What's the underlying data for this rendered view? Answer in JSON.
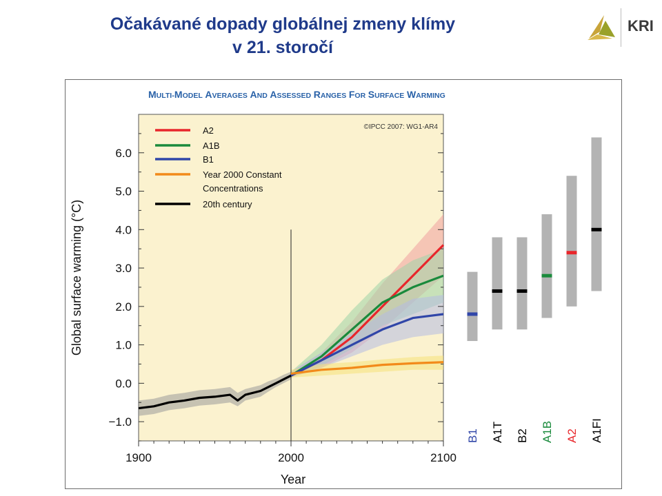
{
  "slide": {
    "title_line1": "Očakávané dopady globálnej zmeny klímy",
    "title_line2": "v 21. storočí",
    "logo_text": "KRI"
  },
  "chart_data": {
    "type": "line",
    "title": "MULTI-MODEL AVERAGES AND ASSESSED RANGES FOR SURFACE WARMING",
    "title_cap_letters": [
      "M",
      "M",
      "A",
      "A",
      "A",
      "R",
      "F",
      "S",
      "W"
    ],
    "credit": "©IPCC 2007: WG1-AR4",
    "xlabel": "Year",
    "ylabel": "Global surface warming (°C)",
    "xlim": [
      1900,
      2100
    ],
    "ylim": [
      -1.5,
      7.0
    ],
    "x_ticks": [
      "1900",
      "2000",
      "2100"
    ],
    "x_tick_values": [
      1900,
      2000,
      2100
    ],
    "y_ticks": [
      "−1.0",
      "0.0",
      "1.0",
      "2.0",
      "3.0",
      "4.0",
      "5.0",
      "6.0"
    ],
    "y_tick_values": [
      -1,
      0,
      1,
      2,
      3,
      4,
      5,
      6
    ],
    "legend_position": "top-left",
    "background_color": "#fbf2cf",
    "series": [
      {
        "name": "A2",
        "color": "#e8262b",
        "band_color": "#f0a0a0",
        "x": [
          2000,
          2020,
          2040,
          2060,
          2080,
          2100
        ],
        "y": [
          0.2,
          0.6,
          1.2,
          2.0,
          2.8,
          3.6
        ],
        "low": [
          0.15,
          0.4,
          0.8,
          1.4,
          2.1,
          2.8
        ],
        "high": [
          0.3,
          0.8,
          1.6,
          2.6,
          3.5,
          4.4
        ]
      },
      {
        "name": "A1B",
        "color": "#1a8a3c",
        "band_color": "#9fd4a8",
        "x": [
          2000,
          2020,
          2040,
          2060,
          2080,
          2100
        ],
        "y": [
          0.2,
          0.7,
          1.4,
          2.1,
          2.5,
          2.8
        ],
        "low": [
          0.15,
          0.45,
          0.9,
          1.5,
          1.8,
          2.1
        ],
        "high": [
          0.3,
          1.0,
          1.9,
          2.7,
          3.2,
          3.5
        ]
      },
      {
        "name": "B1",
        "color": "#3046a8",
        "band_color": "#b4bce4",
        "x": [
          2000,
          2020,
          2040,
          2060,
          2080,
          2100
        ],
        "y": [
          0.2,
          0.6,
          1.0,
          1.4,
          1.7,
          1.8
        ],
        "low": [
          0.15,
          0.4,
          0.7,
          1.0,
          1.2,
          1.3
        ],
        "high": [
          0.3,
          0.8,
          1.3,
          1.8,
          2.2,
          2.3
        ]
      },
      {
        "name": "Year 2000 Constant Concentrations",
        "color": "#f28a1a",
        "band_color": "#f6e27a",
        "x": [
          2000,
          2020,
          2040,
          2060,
          2080,
          2100
        ],
        "y": [
          0.25,
          0.35,
          0.4,
          0.48,
          0.52,
          0.55
        ],
        "low": [
          0.15,
          0.2,
          0.25,
          0.3,
          0.35,
          0.35
        ],
        "high": [
          0.35,
          0.5,
          0.55,
          0.62,
          0.68,
          0.72
        ]
      },
      {
        "name": "20th century",
        "color": "#000000",
        "band_color": "#9a9a9a",
        "x": [
          1900,
          1910,
          1920,
          1930,
          1940,
          1950,
          1960,
          1965,
          1970,
          1980,
          1985,
          1990,
          1995,
          2000
        ],
        "y": [
          -0.65,
          -0.6,
          -0.5,
          -0.45,
          -0.38,
          -0.35,
          -0.3,
          -0.45,
          -0.3,
          -0.2,
          -0.1,
          0.0,
          0.1,
          0.2
        ],
        "low": [
          -0.85,
          -0.8,
          -0.7,
          -0.65,
          -0.58,
          -0.55,
          -0.5,
          -0.6,
          -0.45,
          -0.35,
          -0.22,
          -0.1,
          0.0,
          0.1
        ],
        "high": [
          -0.45,
          -0.4,
          -0.3,
          -0.25,
          -0.18,
          -0.15,
          -0.1,
          -0.25,
          -0.15,
          -0.05,
          0.05,
          0.12,
          0.22,
          0.3
        ]
      }
    ],
    "legend_labels": [
      "A2",
      "A1B",
      "B1",
      "Year 2000 Constant",
      "Concentrations",
      "20th century"
    ],
    "legend_colors": [
      "#e8262b",
      "#1a8a3c",
      "#3046a8",
      "#f28a1a",
      "#000000"
    ],
    "ranges": {
      "bar_color": "#b3b3b3",
      "scenarios": [
        {
          "name": "B1",
          "label_color": "#3046a8",
          "marker_color": "#3046a8",
          "low": 1.1,
          "high": 2.9,
          "best": 1.8
        },
        {
          "name": "A1T",
          "label_color": "#000000",
          "marker_color": "#000000",
          "low": 1.4,
          "high": 3.8,
          "best": 2.4
        },
        {
          "name": "B2",
          "label_color": "#000000",
          "marker_color": "#000000",
          "low": 1.4,
          "high": 3.8,
          "best": 2.4
        },
        {
          "name": "A1B",
          "label_color": "#1a8a3c",
          "marker_color": "#1a8a3c",
          "low": 1.7,
          "high": 4.4,
          "best": 2.8
        },
        {
          "name": "A2",
          "label_color": "#e8262b",
          "marker_color": "#e8262b",
          "low": 2.0,
          "high": 5.4,
          "best": 3.4
        },
        {
          "name": "A1FI",
          "label_color": "#000000",
          "marker_color": "#000000",
          "low": 2.4,
          "high": 6.4,
          "best": 4.0
        }
      ]
    }
  }
}
